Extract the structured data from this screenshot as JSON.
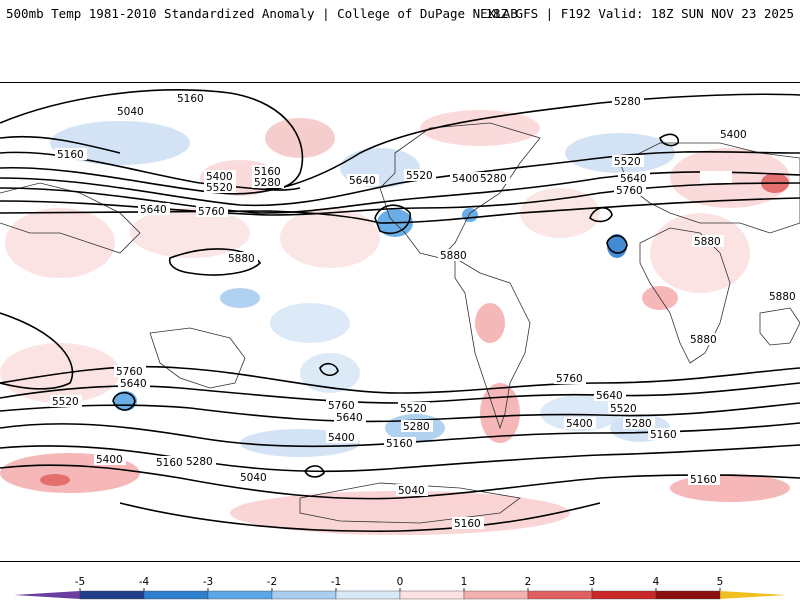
{
  "header": {
    "title": "500mb Temp 1981-2010 Standardized Anomaly | College of DuPage NEXLAB",
    "run_info": "18Z GFS | F192 Valid: 18Z SUN NOV 23 2025"
  },
  "contour_labels": [
    "5160",
    "5040",
    "5160",
    "5400",
    "5520",
    "5160",
    "5280",
    "5640",
    "5760",
    "5880",
    "5640",
    "5520",
    "5400",
    "5280",
    "5160",
    "5280",
    "5400",
    "5520",
    "5640",
    "5760",
    "5880",
    "5880",
    "5880",
    "5760",
    "5640",
    "5520",
    "5400",
    "5280",
    "5160",
    "5040",
    "5760",
    "5640",
    "5520",
    "5400",
    "5280",
    "5160",
    "5040",
    "5160",
    "5160"
  ],
  "colorbar": {
    "ticks": [
      "-5",
      "-4",
      "-3",
      "-2",
      "-1",
      "0",
      "1",
      "2",
      "3",
      "4",
      "5"
    ],
    "colors": [
      "#6a3fa0",
      "#1f3f8a",
      "#2f7fd0",
      "#5aa6e6",
      "#a8cdef",
      "#d9e8f7",
      "#fde0e0",
      "#f4b0b0",
      "#e06060",
      "#c82828",
      "#8a1010",
      "#f0c020"
    ]
  }
}
